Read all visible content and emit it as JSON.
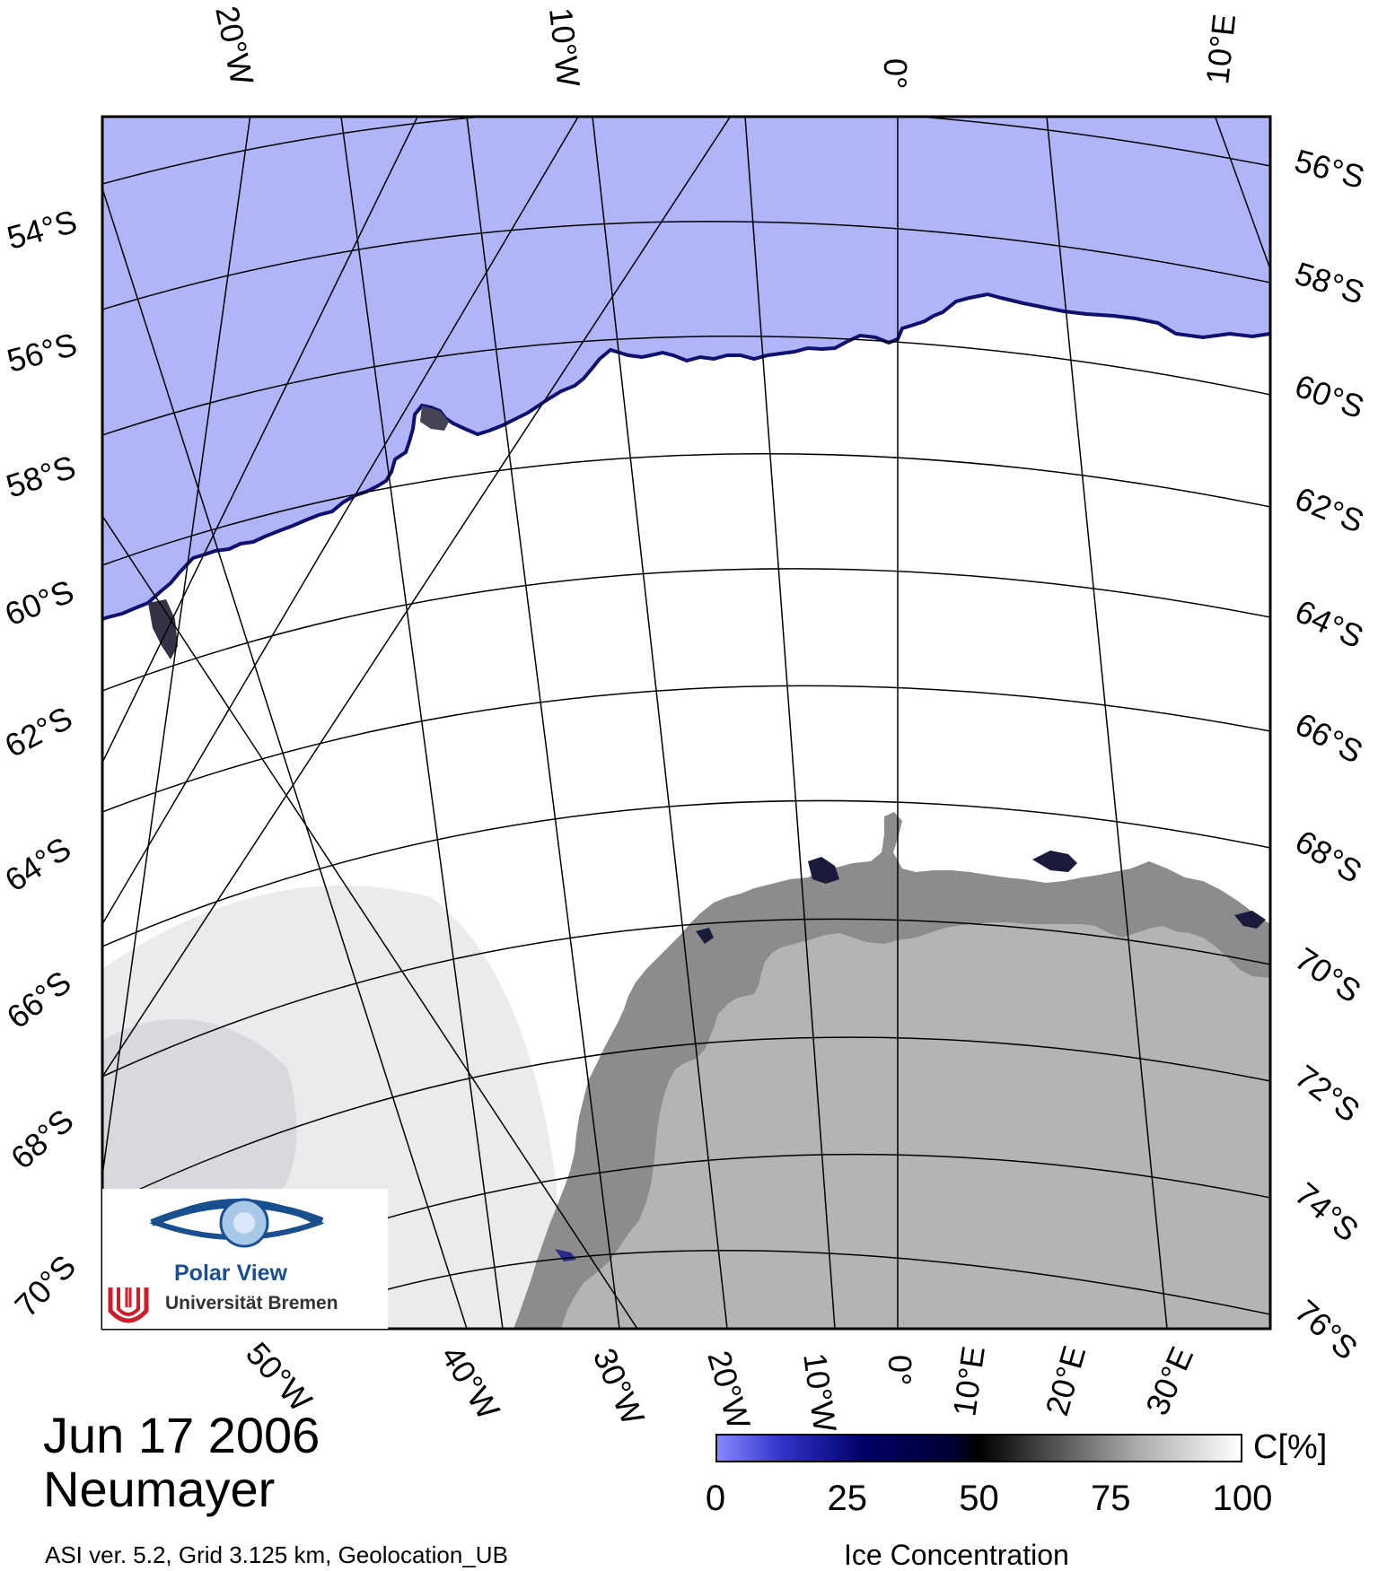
{
  "map": {
    "date": "Jun 17 2006",
    "station": "Neumayer",
    "info": "ASI ver. 5.2,  Grid 3.125 km, Geolocation_UB",
    "colors": {
      "open_water": "#b0b4f8",
      "sea_ice": "#ffffff",
      "ice_shelf": "#8c8c8c",
      "land": "#b4b4b4",
      "grid": "#000000"
    }
  },
  "labels": {
    "top_lon": [
      "20°W",
      "10°W",
      "0°",
      "10°E"
    ],
    "bottom_lon": [
      "50°W",
      "40°W",
      "30°W",
      "20°W",
      "10°W",
      "0°",
      "10°E",
      "20°E",
      "30°E"
    ],
    "left_lat": [
      "54°S",
      "56°S",
      "58°S",
      "60°S",
      "62°S",
      "64°S",
      "66°S",
      "68°S",
      "70°S"
    ],
    "right_lat": [
      "56°S",
      "58°S",
      "60°S",
      "62°S",
      "64°S",
      "66°S",
      "68°S",
      "70°S",
      "72°S",
      "74°S",
      "76°S"
    ]
  },
  "colorbar": {
    "title": "Ice Concentration",
    "unit": "C[%]",
    "ticks": [
      "0",
      "25",
      "50",
      "75",
      "100"
    ],
    "tick_values": [
      0,
      25,
      50,
      75,
      100
    ]
  },
  "logo": {
    "title": "Polar View",
    "university": "Universität Bremen"
  }
}
